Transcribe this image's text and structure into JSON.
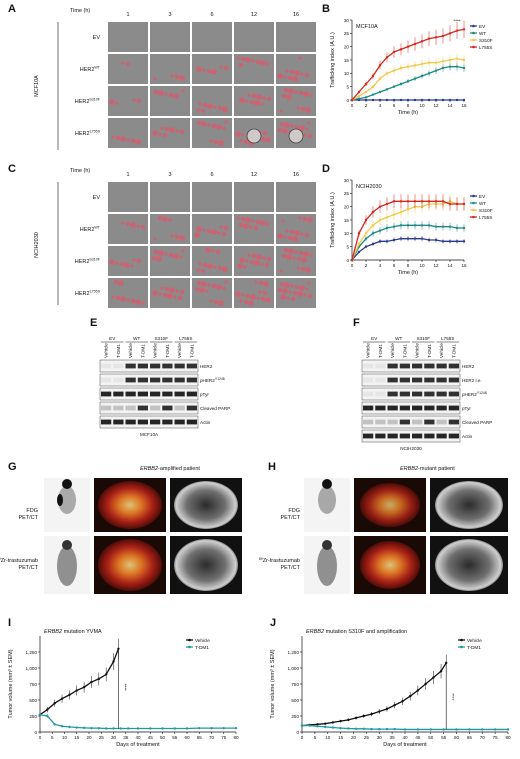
{
  "panels": {
    "A": {
      "label": "A",
      "time_title": "Time (h)",
      "times": [
        "1",
        "3",
        "6",
        "12",
        "16"
      ],
      "rows": [
        "EV",
        "HER2",
        "HER2",
        "HER2"
      ],
      "row_sup": [
        "",
        "WT",
        "S310F",
        "L755S"
      ],
      "side": "MCF10A"
    },
    "C": {
      "label": "C",
      "time_title": "Time (h)",
      "times": [
        "1",
        "3",
        "6",
        "12",
        "16"
      ],
      "rows": [
        "EV",
        "HER2",
        "HER2",
        "HER2"
      ],
      "row_sup": [
        "",
        "WT",
        "S310F",
        "L755S"
      ],
      "side": "NCIH2030"
    },
    "E": {
      "label": "E",
      "groups": [
        "EV",
        "WT",
        "S310F",
        "L755S"
      ],
      "lanes": [
        "Vehicle",
        "T-DM1"
      ],
      "blots": [
        "HER2",
        "pHER2",
        "pTyr",
        "Cleaved PARP",
        "Actin"
      ],
      "blot_sup": [
        "",
        "Y1248",
        "",
        "",
        ""
      ],
      "cell": "MCF10A"
    },
    "F": {
      "label": "F",
      "groups": [
        "EV",
        "WT",
        "S310F",
        "L755S"
      ],
      "lanes": [
        "Vehicle",
        "T-DM1"
      ],
      "blots": [
        "HER2",
        "HER2 l.e.",
        "pHER2",
        "pTyr",
        "Cleaved PARP",
        "Actin"
      ],
      "blot_sup": [
        "",
        "",
        "Y1248",
        "",
        "",
        ""
      ],
      "cell": "NCIH2030"
    },
    "G": {
      "label": "G",
      "title_italic": "ERBB2",
      "title_rest": "-amplified patient",
      "row1": [
        "FDG",
        "PET/CT"
      ],
      "row2_sup": "89",
      "row2": [
        "Zr-trastuzumab",
        "PET/CT"
      ]
    },
    "H": {
      "label": "H",
      "title_italic": "ERBB2",
      "title_rest": "-mutant patient",
      "row1": [
        "FDG",
        "PET/CT"
      ],
      "row2_sup": "89",
      "row2": [
        "Zr-trastuzumab",
        "PET/CT"
      ]
    }
  },
  "chart_data": [
    {
      "panel": "B",
      "type": "line",
      "title": "MCF10A",
      "xlabel": "Time (h)",
      "ylabel": "Trafficking index (A.U.)",
      "xlim": [
        0,
        16
      ],
      "ylim": [
        0,
        30
      ],
      "xticks": [
        0,
        2,
        4,
        6,
        8,
        10,
        12,
        14,
        16
      ],
      "yticks": [
        0,
        5,
        10,
        15,
        20,
        25,
        30
      ],
      "annotation": "****",
      "legend_position": "top-right",
      "x": [
        0,
        1,
        2,
        3,
        4,
        5,
        6,
        7,
        8,
        9,
        10,
        11,
        12,
        13,
        14,
        15,
        16
      ],
      "series": [
        {
          "name": "EV",
          "color": "#2b3a8f",
          "values": [
            0,
            0,
            0,
            0,
            0,
            0,
            0,
            0,
            0,
            0,
            0,
            0,
            0,
            0,
            0,
            0,
            0
          ]
        },
        {
          "name": "WT",
          "color": "#1f8a84",
          "values": [
            0,
            0.5,
            1,
            2,
            3,
            4,
            5,
            6,
            7,
            8,
            9,
            10,
            11,
            12,
            12.5,
            12.5,
            12
          ]
        },
        {
          "name": "S310F",
          "color": "#f2c94c",
          "values": [
            0,
            1.5,
            3,
            5,
            8,
            10,
            11,
            12,
            12.5,
            13,
            13.5,
            14,
            14,
            14.5,
            15,
            15.5,
            15
          ]
        },
        {
          "name": "L755S",
          "color": "#d7261e",
          "values": [
            0,
            3,
            6,
            9,
            13,
            16,
            18,
            19,
            20,
            21,
            22,
            23,
            23.5,
            24,
            25,
            26,
            26.5
          ]
        }
      ]
    },
    {
      "panel": "D",
      "type": "line",
      "title": "NCIH2030",
      "xlabel": "Time (h)",
      "ylabel": "Trafficking index (A.U.)",
      "xlim": [
        0,
        16
      ],
      "ylim": [
        0,
        30
      ],
      "xticks": [
        0,
        2,
        4,
        6,
        8,
        10,
        12,
        14,
        16
      ],
      "yticks": [
        0,
        5,
        10,
        15,
        20,
        25,
        30
      ],
      "legend_position": "right",
      "x": [
        0,
        1,
        2,
        3,
        4,
        5,
        6,
        7,
        8,
        9,
        10,
        11,
        12,
        13,
        14,
        15,
        16
      ],
      "series": [
        {
          "name": "EV",
          "color": "#2b3a8f",
          "values": [
            0,
            3,
            5,
            6,
            7,
            7,
            7.5,
            8,
            8,
            8,
            8,
            7.5,
            7.5,
            7,
            7,
            7,
            7
          ]
        },
        {
          "name": "WT",
          "color": "#1f8a84",
          "values": [
            0,
            5,
            8,
            10,
            11,
            12,
            12.5,
            13,
            13,
            13,
            13,
            13,
            12.5,
            12.5,
            12.5,
            12,
            12
          ]
        },
        {
          "name": "S310F",
          "color": "#f2c94c",
          "values": [
            0,
            6,
            10,
            13,
            15,
            16,
            17,
            18,
            19,
            20,
            20,
            21,
            21,
            21,
            22,
            21,
            21
          ]
        },
        {
          "name": "L755S",
          "color": "#d7261e",
          "values": [
            0,
            10,
            15,
            18,
            20,
            21,
            22,
            22,
            22,
            22,
            22,
            22,
            22,
            22,
            21,
            21,
            21
          ]
        }
      ]
    },
    {
      "panel": "I",
      "type": "line",
      "title_italic": "ERBB2",
      "title": "mutation YVMA",
      "xlabel": "Days of treatment",
      "ylabel": "Tumor volume (mm³ ± SEM)",
      "xlim": [
        0,
        80
      ],
      "ylim": [
        0,
        1500
      ],
      "xticks": [
        0,
        5,
        10,
        15,
        20,
        25,
        30,
        35,
        40,
        45,
        50,
        55,
        60,
        65,
        70,
        75,
        80
      ],
      "yticks": [
        0,
        250,
        500,
        750,
        1000,
        1250
      ],
      "ytick_labels": [
        "0",
        "250",
        "500",
        "750",
        "1,000",
        "1,250"
      ],
      "annotation": "****",
      "legend_position": "top-right",
      "series": [
        {
          "name": "Vehicle",
          "color": "#111111",
          "x": [
            0,
            3,
            6,
            9,
            12,
            15,
            18,
            21,
            24,
            27,
            30,
            32
          ],
          "values": [
            270,
            350,
            450,
            520,
            580,
            650,
            700,
            780,
            830,
            900,
            1100,
            1300
          ]
        },
        {
          "name": "T-DM1",
          "color": "#1f9aa0",
          "x": [
            0,
            3,
            6,
            9,
            12,
            15,
            18,
            21,
            24,
            27,
            30,
            33,
            36,
            40,
            45,
            50,
            55,
            60,
            65,
            70,
            75,
            80
          ],
          "values": [
            270,
            250,
            120,
            90,
            80,
            70,
            65,
            60,
            60,
            55,
            55,
            55,
            55,
            55,
            55,
            55,
            55,
            55,
            60,
            60,
            60,
            60
          ]
        }
      ]
    },
    {
      "panel": "J",
      "type": "line",
      "title_italic": "ERBB2",
      "title": "mutation S310F and amplification",
      "xlabel": "Days of treatment",
      "ylabel": "Tumor volume (mm³ ± SEM)",
      "xlim": [
        0,
        80
      ],
      "ylim": [
        0,
        1500
      ],
      "xticks": [
        0,
        5,
        10,
        15,
        20,
        25,
        30,
        35,
        40,
        45,
        50,
        55,
        60,
        65,
        70,
        75,
        80
      ],
      "yticks": [
        0,
        250,
        500,
        750,
        1000,
        1250
      ],
      "ytick_labels": [
        "0",
        "250",
        "500",
        "750",
        "1,000",
        "1,250"
      ],
      "annotation": "****",
      "legend_position": "top-right",
      "series": [
        {
          "name": "Vehicle",
          "color": "#111111",
          "x": [
            0,
            3,
            6,
            9,
            12,
            15,
            18,
            21,
            24,
            27,
            30,
            33,
            36,
            39,
            42,
            45,
            48,
            51,
            54,
            56
          ],
          "values": [
            100,
            110,
            120,
            130,
            150,
            170,
            190,
            220,
            250,
            280,
            320,
            360,
            420,
            480,
            560,
            650,
            750,
            850,
            950,
            1080
          ]
        },
        {
          "name": "T-DM1",
          "color": "#1f9aa0",
          "x": [
            0,
            3,
            6,
            9,
            12,
            15,
            18,
            21,
            24,
            27,
            30,
            33,
            36,
            40,
            45,
            50,
            55,
            60,
            65,
            70,
            75,
            80
          ],
          "values": [
            100,
            100,
            90,
            80,
            70,
            60,
            55,
            50,
            50,
            45,
            45,
            45,
            45,
            40,
            40,
            40,
            40,
            40,
            40,
            40,
            40,
            40
          ]
        }
      ]
    }
  ]
}
